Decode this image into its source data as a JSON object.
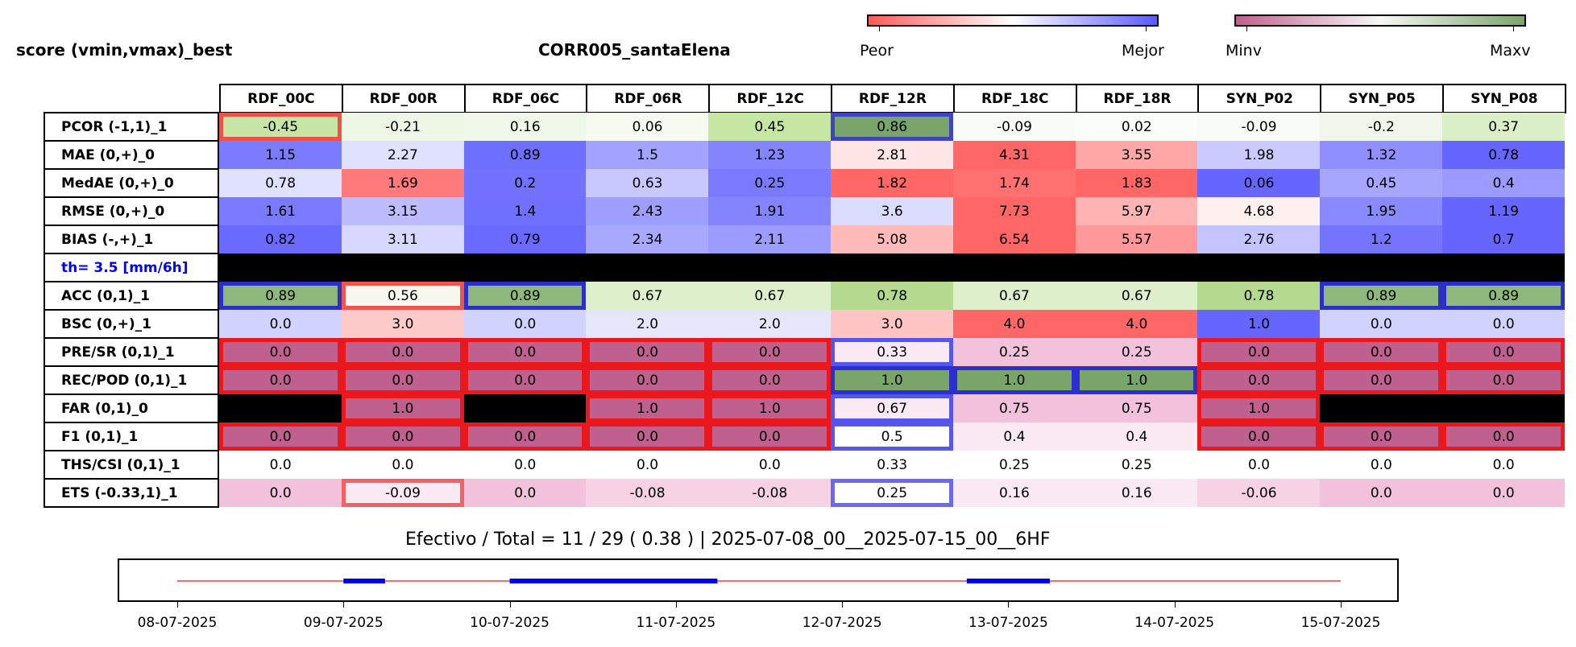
{
  "header": {
    "title_left": "score (vmin,vmax)_best",
    "title_center": "CORR005_santaElena"
  },
  "colorbars": {
    "left": {
      "low_label": "Peor",
      "high_label": "Mejor",
      "colors": [
        "#ff5a5a",
        "#ffffff",
        "#5a5aff"
      ]
    },
    "right": {
      "low_label": "Minv",
      "high_label": "Maxv",
      "colors": [
        "#c0608f",
        "#f7f7f7",
        "#7aa56a"
      ]
    }
  },
  "chart_data": {
    "type": "table",
    "columns": [
      "RDF_00C",
      "RDF_00R",
      "RDF_06C",
      "RDF_06R",
      "RDF_12C",
      "RDF_12R",
      "RDF_18C",
      "RDF_18R",
      "SYN_P02",
      "SYN_P05",
      "SYN_P08"
    ],
    "rows": [
      {
        "label": "PCOR (-1,1)_1",
        "values": [
          "-0.45",
          "-0.21",
          "0.16",
          "0.06",
          "0.45",
          "0.86",
          "-0.09",
          "0.02",
          "-0.09",
          "-0.2",
          "0.37"
        ],
        "colors": [
          "#c7e6a6",
          "#eef7e6",
          "#f0f8ea",
          "#f6fbf2",
          "#c6e6a4",
          "#7aa56a",
          "#f9fcf6",
          "#fbfdf9",
          "#f9fcf6",
          "#f0f7ea",
          "#dcf0c8"
        ]
      },
      {
        "label": "MAE (0,+)_0",
        "values": [
          "1.15",
          "2.27",
          "0.89",
          "1.5",
          "1.23",
          "2.81",
          "4.31",
          "3.55",
          "1.98",
          "1.32",
          "0.78"
        ],
        "colors": [
          "#7b7bff",
          "#e0e0ff",
          "#6e6eff",
          "#a2a2ff",
          "#8484ff",
          "#ffe5e5",
          "#ff6666",
          "#ffa6a6",
          "#cacaff",
          "#8f8fff",
          "#6666ff"
        ]
      },
      {
        "label": "MedAE (0,+)_0",
        "values": [
          "0.78",
          "1.69",
          "0.2",
          "0.63",
          "0.25",
          "1.82",
          "1.74",
          "1.83",
          "0.06",
          "0.45",
          "0.4"
        ],
        "colors": [
          "#e0e0ff",
          "#ff7a7a",
          "#7272ff",
          "#c8c8ff",
          "#7a7aff",
          "#ff6666",
          "#ff7070",
          "#ff6666",
          "#6666ff",
          "#a6a6ff",
          "#9a9aff"
        ]
      },
      {
        "label": "RMSE (0,+)_0",
        "values": [
          "1.61",
          "3.15",
          "1.4",
          "2.43",
          "1.91",
          "3.6",
          "7.73",
          "5.97",
          "4.68",
          "1.95",
          "1.19"
        ],
        "colors": [
          "#7a7aff",
          "#bcbcff",
          "#7070ff",
          "#9e9eff",
          "#8484ff",
          "#dcdcff",
          "#ff6666",
          "#ffb4b4",
          "#fff0f0",
          "#8a8aff",
          "#6666ff"
        ]
      },
      {
        "label": "BIAS (-,+)_1",
        "values": [
          "0.82",
          "3.11",
          "0.79",
          "2.34",
          "2.11",
          "5.08",
          "6.54",
          "5.57",
          "2.76",
          "1.2",
          "0.7"
        ],
        "colors": [
          "#6a6aff",
          "#d8d8ff",
          "#6969ff",
          "#a8a8ff",
          "#9c9cff",
          "#ffbaba",
          "#ff6666",
          "#ff9898",
          "#c4c4ff",
          "#7474ff",
          "#6666ff"
        ]
      },
      {
        "label": "th= 3.5 [mm/6h]",
        "threshold": true,
        "values": [
          "",
          "",
          "",
          "",
          "",
          "",
          "",
          "",
          "",
          "",
          ""
        ],
        "colors": [
          "#000000",
          "#000000",
          "#000000",
          "#000000",
          "#000000",
          "#000000",
          "#000000",
          "#000000",
          "#000000",
          "#000000",
          "#000000"
        ]
      },
      {
        "label": "ACC (0,1)_1",
        "values": [
          "0.89",
          "0.56",
          "0.89",
          "0.67",
          "0.67",
          "0.78",
          "0.67",
          "0.67",
          "0.78",
          "0.89",
          "0.89"
        ],
        "colors": [
          "#8fb97c",
          "#f5f9ee",
          "#8fb97c",
          "#deefcb",
          "#deefcb",
          "#b4d98f",
          "#deefcb",
          "#deefcb",
          "#b4d98f",
          "#8fb97c",
          "#8fb97c"
        ]
      },
      {
        "label": "BSC (0,+)_1",
        "values": [
          "0.0",
          "3.0",
          "0.0",
          "2.0",
          "2.0",
          "3.0",
          "4.0",
          "4.0",
          "1.0",
          "0.0",
          "0.0"
        ],
        "colors": [
          "#d2d2ff",
          "#ffcaca",
          "#d2d2ff",
          "#e6e6fa",
          "#e6e6fa",
          "#ffc4c4",
          "#ff6666",
          "#ff6666",
          "#6666ff",
          "#d2d2ff",
          "#d2d2ff"
        ]
      },
      {
        "label": "PRE/SR (0,1)_1",
        "values": [
          "0.0",
          "0.0",
          "0.0",
          "0.0",
          "0.0",
          "0.33",
          "0.25",
          "0.25",
          "0.0",
          "0.0",
          "0.0"
        ],
        "colors": [
          "#c0608f",
          "#c0608f",
          "#c0608f",
          "#c0608f",
          "#c0608f",
          "#fbeaf3",
          "#f2c2dc",
          "#f2c2dc",
          "#c0608f",
          "#c0608f",
          "#c0608f"
        ]
      },
      {
        "label": "REC/POD (0,1)_1",
        "values": [
          "0.0",
          "0.0",
          "0.0",
          "0.0",
          "0.0",
          "1.0",
          "1.0",
          "1.0",
          "0.0",
          "0.0",
          "0.0"
        ],
        "colors": [
          "#c0608f",
          "#c0608f",
          "#c0608f",
          "#c0608f",
          "#c0608f",
          "#7aa56a",
          "#7aa56a",
          "#7aa56a",
          "#c0608f",
          "#c0608f",
          "#c0608f"
        ]
      },
      {
        "label": "FAR (0,1)_0",
        "values": [
          "",
          "1.0",
          "",
          "1.0",
          "1.0",
          "0.67",
          "0.75",
          "0.75",
          "1.0",
          "",
          ""
        ],
        "colors": [
          "#000000",
          "#c0608f",
          "#000000",
          "#c0608f",
          "#c0608f",
          "#fbeaf3",
          "#f2c2dc",
          "#f2c2dc",
          "#c0608f",
          "#000000",
          "#000000"
        ]
      },
      {
        "label": "F1 (0,1)_1",
        "values": [
          "0.0",
          "0.0",
          "0.0",
          "0.0",
          "0.0",
          "0.5",
          "0.4",
          "0.4",
          "0.0",
          "0.0",
          "0.0"
        ],
        "colors": [
          "#c0608f",
          "#c0608f",
          "#c0608f",
          "#c0608f",
          "#c0608f",
          "#ffffff",
          "#fbeaf3",
          "#fbeaf3",
          "#c0608f",
          "#c0608f",
          "#c0608f"
        ]
      },
      {
        "label": "THS/CSI (0,1)_1",
        "values": [
          "0.0",
          "0.0",
          "0.0",
          "0.0",
          "0.0",
          "0.33",
          "0.25",
          "0.25",
          "0.0",
          "0.0",
          "0.0"
        ],
        "colors": [
          "#ffffff",
          "#ffffff",
          "#ffffff",
          "#ffffff",
          "#ffffff",
          "#ffffff",
          "#ffffff",
          "#ffffff",
          "#ffffff",
          "#ffffff",
          "#ffffff"
        ]
      },
      {
        "label": "ETS (-0.33,1)_1",
        "values": [
          "0.0",
          "-0.09",
          "0.0",
          "-0.08",
          "-0.08",
          "0.25",
          "0.16",
          "0.16",
          "-0.06",
          "0.0",
          "0.0"
        ],
        "colors": [
          "#f2c2dc",
          "#fbeaf3",
          "#f2c2dc",
          "#f6d2e4",
          "#f6d2e4",
          "#ffffff",
          "#fbeaf3",
          "#fbeaf3",
          "#f6d2e4",
          "#f2c2dc",
          "#f2c2dc"
        ]
      }
    ],
    "highlights": [
      {
        "row": 0,
        "cols": [
          0
        ],
        "color": "#f04040",
        "opacity": 0.9
      },
      {
        "row": 0,
        "cols": [
          5
        ],
        "color": "#3a3acc",
        "opacity": 0.9
      },
      {
        "row": 6,
        "cols": [
          1
        ],
        "color": "#f04040",
        "opacity": 0.9
      },
      {
        "row": 6,
        "cols": [
          0,
          2,
          9,
          10
        ],
        "color": "#2020cc",
        "opacity": 0.9
      },
      {
        "row": 8,
        "cols": [
          0,
          1,
          2,
          3,
          4,
          8,
          9,
          10
        ],
        "color": "#ee1111",
        "opacity": 0.9
      },
      {
        "row": 8,
        "cols": [
          5
        ],
        "color": "#4444ee",
        "opacity": 0.9
      },
      {
        "row": 9,
        "cols": [
          0,
          1,
          2,
          3,
          4,
          8,
          9,
          10
        ],
        "color": "#ee1111",
        "opacity": 0.9
      },
      {
        "row": 9,
        "cols": [
          5,
          6,
          7
        ],
        "color": "#2222dd",
        "opacity": 0.9
      },
      {
        "row": 10,
        "cols": [
          1,
          3,
          4,
          8
        ],
        "color": "#ee1111",
        "opacity": 0.9
      },
      {
        "row": 10,
        "cols": [
          5
        ],
        "color": "#4444ee",
        "opacity": 0.9
      },
      {
        "row": 11,
        "cols": [
          0,
          1,
          2,
          3,
          4,
          8,
          9,
          10
        ],
        "color": "#ee1111",
        "opacity": 0.9
      },
      {
        "row": 11,
        "cols": [
          5
        ],
        "color": "#4444ee",
        "opacity": 0.9
      },
      {
        "row": 13,
        "cols": [
          1
        ],
        "color": "#f04040",
        "opacity": 0.8
      },
      {
        "row": 13,
        "cols": [
          5
        ],
        "color": "#4444ee",
        "opacity": 0.8
      }
    ],
    "timeline": {
      "caption": "Efectivo / Total  =  11 / 29 ( 0.38 ) | 2025-07-08_00__2025-07-15_00__6HF",
      "x_range": [
        "2025-07-08T00:00",
        "2025-07-15T00:00"
      ],
      "base_color": "#f07070",
      "effective_color": "#0000ee",
      "effective_periods": [
        [
          "2025-07-09T00:00",
          "2025-07-09T06:00"
        ],
        [
          "2025-07-10T00:00",
          "2025-07-11T06:00"
        ],
        [
          "2025-07-12T18:00",
          "2025-07-13T06:00"
        ]
      ],
      "tick_labels": [
        "08-07-2025",
        "09-07-2025",
        "10-07-2025",
        "11-07-2025",
        "12-07-2025",
        "13-07-2025",
        "14-07-2025",
        "15-07-2025"
      ]
    }
  }
}
